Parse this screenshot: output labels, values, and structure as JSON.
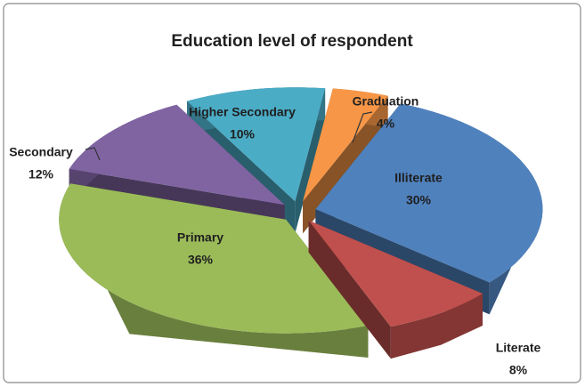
{
  "chart_data": {
    "type": "pie3d",
    "title": "Education level of respondent",
    "categories": [
      "Illiterate",
      "Literate",
      "Primary",
      "Secondary",
      "Higher Secondary",
      "Graduation"
    ],
    "values": [
      30,
      8,
      36,
      12,
      10,
      4
    ],
    "value_labels": [
      "30%",
      "8%",
      "36%",
      "12%",
      "10%",
      "4%"
    ],
    "colors": [
      "#4f81bd",
      "#c0504d",
      "#9bbb59",
      "#8064a2",
      "#4bacc6",
      "#f79646"
    ]
  }
}
